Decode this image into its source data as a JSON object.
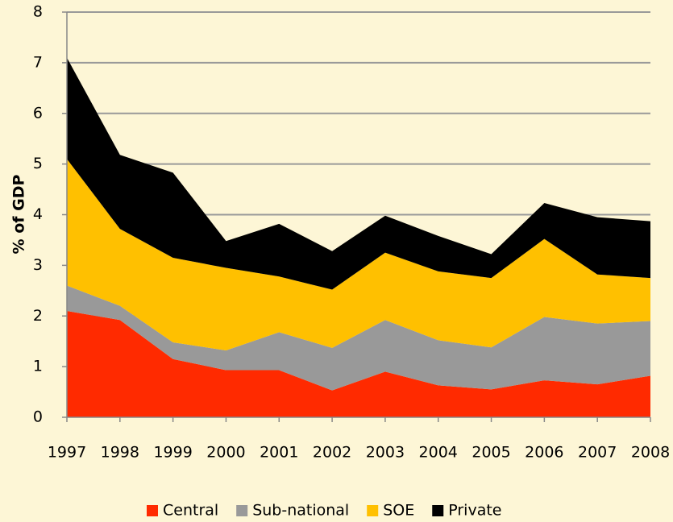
{
  "chart_data": {
    "type": "stacked_area",
    "y_label": "% of GDP",
    "categories": [
      "1997",
      "1998",
      "1999",
      "2000",
      "2001",
      "2002",
      "2003",
      "2004",
      "2005",
      "2006",
      "2007",
      "2008"
    ],
    "series": [
      {
        "name": "Central",
        "color": "#ff2a00",
        "values": [
          2.1,
          1.92,
          1.15,
          0.93,
          0.93,
          0.53,
          0.9,
          0.63,
          0.55,
          0.73,
          0.65,
          0.82
        ]
      },
      {
        "name": "Sub-national",
        "color": "#999999",
        "values": [
          0.5,
          0.28,
          0.33,
          0.39,
          0.75,
          0.84,
          1.02,
          0.89,
          0.83,
          1.25,
          1.2,
          1.08
        ]
      },
      {
        "name": "SOE",
        "color": "#ffc000",
        "values": [
          2.5,
          1.52,
          1.67,
          1.63,
          1.1,
          1.15,
          1.33,
          1.36,
          1.37,
          1.54,
          0.97,
          0.85
        ]
      },
      {
        "name": "Private",
        "color": "#000000",
        "values": [
          2.0,
          1.46,
          1.68,
          0.53,
          1.04,
          0.76,
          0.73,
          0.7,
          0.47,
          0.71,
          1.13,
          1.12
        ]
      }
    ],
    "ylim": [
      0,
      8
    ],
    "yticks": [
      0,
      1,
      2,
      3,
      4,
      5,
      6,
      7,
      8
    ],
    "grid": true,
    "legend": "bottom"
  }
}
